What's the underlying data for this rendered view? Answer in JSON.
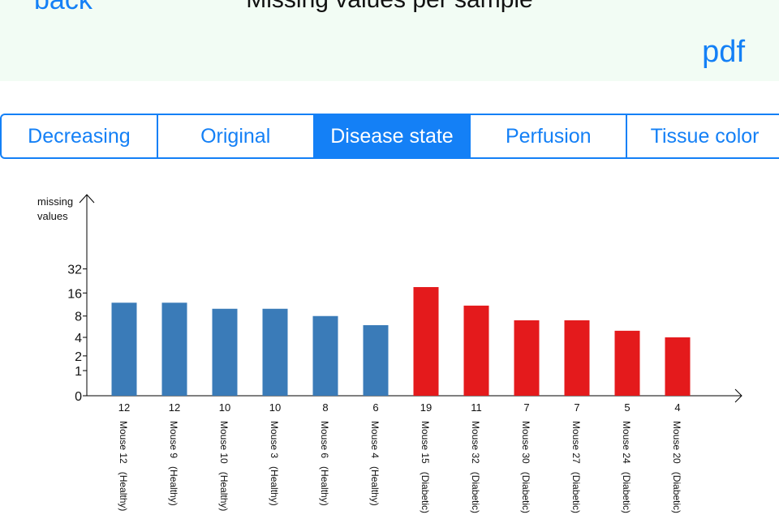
{
  "header": {
    "back_label": "back",
    "title": "Missing values per sample",
    "pdf_label": "pdf"
  },
  "tabs": [
    {
      "label": "Decreasing",
      "selected": false
    },
    {
      "label": "Original",
      "selected": false
    },
    {
      "label": "Disease state",
      "selected": true
    },
    {
      "label": "Perfusion",
      "selected": false
    },
    {
      "label": "Tissue color",
      "selected": false
    }
  ],
  "chart_data": {
    "type": "bar",
    "ylabel_line1": "missing",
    "ylabel_line2": "values",
    "yscale": "log2(1+value)",
    "yticks": [
      0,
      1,
      2,
      4,
      8,
      16,
      32
    ],
    "categories": [
      "Mouse 12   (Healthy)",
      "Mouse 9   (Healthy)",
      "Mouse 10   (Healthy)",
      "Mouse 3   (Healthy)",
      "Mouse 6   (Healthy)",
      "Mouse 4   (Healthy)",
      "Mouse 15   (Diabetic)",
      "Mouse 32   (Diabetic)",
      "Mouse 30   (Diabetic)",
      "Mouse 27   (Diabetic)",
      "Mouse 24   (Diabetic)",
      "Mouse 20   (Diabetic)"
    ],
    "values": [
      12,
      12,
      10,
      10,
      8,
      6,
      19,
      11,
      7,
      7,
      5,
      4
    ],
    "groups": [
      "Healthy",
      "Healthy",
      "Healthy",
      "Healthy",
      "Healthy",
      "Healthy",
      "Diabetic",
      "Diabetic",
      "Diabetic",
      "Diabetic",
      "Diabetic",
      "Diabetic"
    ],
    "colors": {
      "Healthy": "#3a7bb8",
      "Diabetic": "#e41a1c"
    },
    "grid": false
  }
}
